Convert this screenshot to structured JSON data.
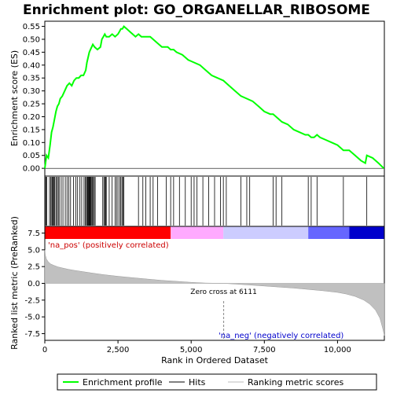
{
  "chart_data": {
    "title": "Enrichment plot: GO_ORGANELLAR_RIBOSOME",
    "type": "line",
    "x_max": 11600,
    "top_panel": {
      "ylabel": "Enrichment score (ES)",
      "ylim": [
        -0.03,
        0.57
      ],
      "yticks": [
        "0.00",
        "0.05",
        "0.10",
        "0.15",
        "0.20",
        "0.25",
        "0.30",
        "0.35",
        "0.40",
        "0.45",
        "0.50",
        "0.55"
      ],
      "es_curve": {
        "x": [
          0,
          60,
          120,
          180,
          230,
          280,
          330,
          380,
          430,
          480,
          530,
          600,
          680,
          760,
          840,
          920,
          1000,
          1080,
          1160,
          1240,
          1320,
          1400,
          1440,
          1480,
          1520,
          1560,
          1600,
          1640,
          1700,
          1800,
          1900,
          1950,
          2000,
          2050,
          2100,
          2200,
          2300,
          2400,
          2500,
          2550,
          2600,
          2650,
          2700,
          2800,
          2900,
          3000,
          3100,
          3200,
          3300,
          3400,
          3500,
          3600,
          3700,
          3800,
          3900,
          4000,
          4100,
          4200,
          4300,
          4400,
          4500,
          4700,
          4900,
          5100,
          5300,
          5500,
          5700,
          5900,
          6100,
          6300,
          6500,
          6700,
          6900,
          7100,
          7300,
          7500,
          7700,
          7800,
          7900,
          8000,
          8100,
          8300,
          8500,
          8700,
          8900,
          9000,
          9100,
          9200,
          9300,
          9400,
          9600,
          9800,
          10000,
          10100,
          10200,
          10400,
          10600,
          10800,
          10950,
          11000,
          11200,
          11400,
          11580
        ],
        "y": [
          0.0,
          0.05,
          0.04,
          0.09,
          0.14,
          0.16,
          0.19,
          0.22,
          0.24,
          0.25,
          0.27,
          0.28,
          0.3,
          0.32,
          0.33,
          0.32,
          0.34,
          0.35,
          0.35,
          0.36,
          0.36,
          0.38,
          0.41,
          0.43,
          0.45,
          0.46,
          0.47,
          0.48,
          0.47,
          0.46,
          0.47,
          0.5,
          0.51,
          0.52,
          0.51,
          0.51,
          0.52,
          0.51,
          0.52,
          0.53,
          0.54,
          0.54,
          0.55,
          0.54,
          0.53,
          0.52,
          0.51,
          0.52,
          0.51,
          0.51,
          0.51,
          0.51,
          0.5,
          0.49,
          0.48,
          0.47,
          0.47,
          0.47,
          0.46,
          0.46,
          0.45,
          0.44,
          0.42,
          0.41,
          0.4,
          0.38,
          0.36,
          0.35,
          0.34,
          0.32,
          0.3,
          0.28,
          0.27,
          0.26,
          0.24,
          0.22,
          0.21,
          0.21,
          0.2,
          0.19,
          0.18,
          0.17,
          0.15,
          0.14,
          0.13,
          0.13,
          0.12,
          0.12,
          0.13,
          0.12,
          0.11,
          0.1,
          0.09,
          0.08,
          0.07,
          0.07,
          0.05,
          0.03,
          0.02,
          0.05,
          0.04,
          0.02,
          0.0
        ]
      }
    },
    "hits": [
      10,
      40,
      70,
      160,
      200,
      240,
      260,
      290,
      310,
      340,
      380,
      420,
      460,
      490,
      560,
      620,
      700,
      760,
      820,
      880,
      980,
      1060,
      1120,
      1200,
      1260,
      1340,
      1380,
      1420,
      1450,
      1470,
      1490,
      1510,
      1530,
      1550,
      1570,
      1590,
      1620,
      1650,
      1690,
      1720,
      1980,
      2020,
      2050,
      2080,
      2100,
      2200,
      2300,
      2400,
      2450,
      2500,
      2560,
      2600,
      2640,
      2680,
      2700,
      3200,
      3350,
      3450,
      3600,
      3700,
      3850,
      4150,
      4300,
      4400,
      4600,
      4800,
      5000,
      5100,
      5200,
      5400,
      5600,
      5800,
      6000,
      6100,
      6200,
      6700,
      6900,
      7000,
      7800,
      7900,
      8100,
      9000,
      9100,
      9300,
      10200,
      11000
    ],
    "rank_bar_segments": [
      {
        "to": 4300,
        "color": "#ff0000"
      },
      {
        "to": 6100,
        "color": "#ffaaff"
      },
      {
        "to": 9000,
        "color": "#ccccff"
      },
      {
        "to": 10400,
        "color": "#6666ff"
      },
      {
        "to": 11600,
        "color": "#0000cc"
      }
    ],
    "bottom_panel": {
      "ylabel": "Ranked list metric (PreRanked)",
      "xlabel": "Rank in Ordered Dataset",
      "ylim": [
        -8.5,
        8.5
      ],
      "yticks": [
        "7.5",
        "5.0",
        "2.5",
        "0.0",
        "-2.5",
        "-5.0",
        "-7.5"
      ],
      "xticks": [
        "0",
        "2,500",
        "5,000",
        "7,500",
        "10,000"
      ],
      "metric_curve": {
        "x": [
          0,
          20,
          60,
          120,
          200,
          300,
          450,
          600,
          800,
          1000,
          1300,
          1600,
          2000,
          2500,
          3000,
          3500,
          4000,
          4500,
          5000,
          5500,
          6111,
          6500,
          7000,
          7500,
          8000,
          8500,
          9000,
          9500,
          10000,
          10300,
          10600,
          10900,
          11100,
          11300,
          11450,
          11550,
          11600
        ],
        "y": [
          5.0,
          4.2,
          3.6,
          3.2,
          2.9,
          2.7,
          2.45,
          2.3,
          2.1,
          1.95,
          1.75,
          1.55,
          1.3,
          1.05,
          0.85,
          0.65,
          0.45,
          0.3,
          0.15,
          0.05,
          0.0,
          -0.1,
          -0.25,
          -0.4,
          -0.55,
          -0.7,
          -0.9,
          -1.1,
          -1.35,
          -1.6,
          -1.95,
          -2.5,
          -3.1,
          -4.0,
          -5.2,
          -6.8,
          -7.8
        ]
      },
      "zero_cross_label": "Zero cross at 6111",
      "zero_cross_x": 6111,
      "pos_label": "'na_pos' (positively correlated)",
      "neg_label": "'na_neg' (negatively correlated)"
    },
    "legend": [
      {
        "label": "Enrichment profile",
        "color": "#00ff00"
      },
      {
        "label": "Hits",
        "color": "#000000"
      },
      {
        "label": "Ranking metric scores",
        "color": "#bbbbbb"
      }
    ],
    "colors": {
      "es": "#00ff00",
      "metric": "#c0c0c0",
      "hit": "#000000"
    }
  }
}
